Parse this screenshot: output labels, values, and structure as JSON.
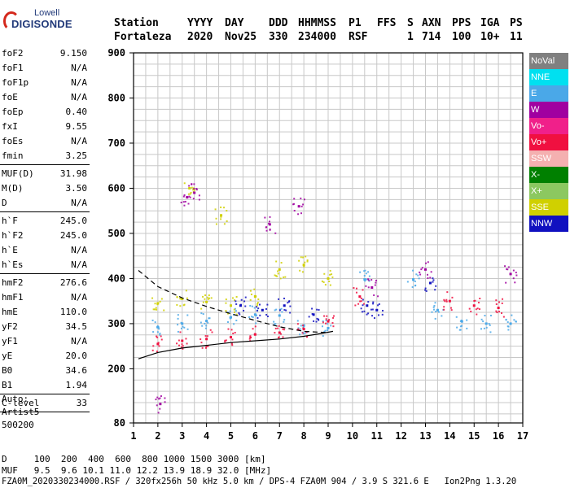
{
  "logo": {
    "line1": "Lowell",
    "line2": "DIGISONDE"
  },
  "header": {
    "labels": [
      "Station",
      "YYYY",
      "DAY",
      "DDD",
      "HHMMSS",
      "P1",
      "FFS",
      "S",
      "AXN",
      "PPS",
      "IGA",
      "PS"
    ],
    "values": [
      "Fortaleza",
      "2020",
      "Nov25",
      "330",
      "234000",
      "RSF",
      "1",
      "714",
      "100",
      "10+",
      "11"
    ]
  },
  "params": [
    [
      {
        "k": "foF2",
        "v": "9.150"
      },
      {
        "k": "foF1",
        "v": "N/A"
      },
      {
        "k": "foF1p",
        "v": "N/A"
      },
      {
        "k": "foE",
        "v": "N/A"
      },
      {
        "k": "foEp",
        "v": "0.40"
      },
      {
        "k": "fxI",
        "v": "9.55"
      },
      {
        "k": "foEs",
        "v": "N/A"
      },
      {
        "k": "fmin",
        "v": "3.25"
      }
    ],
    [
      {
        "k": "MUF(D)",
        "v": "31.98"
      },
      {
        "k": "M(D)",
        "v": "3.50"
      },
      {
        "k": "D",
        "v": "N/A"
      }
    ],
    [
      {
        "k": "h`F",
        "v": "245.0"
      },
      {
        "k": "h`F2",
        "v": "245.0"
      },
      {
        "k": "h`E",
        "v": "N/A"
      },
      {
        "k": "h`Es",
        "v": "N/A"
      }
    ],
    [
      {
        "k": "hmF2",
        "v": "276.6"
      },
      {
        "k": "hmF1",
        "v": "N/A"
      },
      {
        "k": "hmE",
        "v": "110.0"
      },
      {
        "k": "yF2",
        "v": "34.5"
      },
      {
        "k": "yF1",
        "v": "N/A"
      },
      {
        "k": "yE",
        "v": "20.0"
      },
      {
        "k": "B0",
        "v": "34.6"
      },
      {
        "k": "B1",
        "v": "1.94"
      }
    ],
    [
      {
        "k": "C-level",
        "v": "33"
      }
    ]
  ],
  "auto": [
    "Auto:",
    "Artist5",
    "500200"
  ],
  "legend": [
    {
      "label": "NoVal",
      "color": "#808080"
    },
    {
      "label": "NNE",
      "color": "#00e0f0"
    },
    {
      "label": "E",
      "color": "#4aa8e8"
    },
    {
      "label": "W",
      "color": "#a000a0"
    },
    {
      "label": "Vo-",
      "color": "#f0208a"
    },
    {
      "label": "Vo+",
      "color": "#f01040"
    },
    {
      "label": "SSW",
      "color": "#f4b0b0"
    },
    {
      "label": "X-",
      "color": "#008000"
    },
    {
      "label": "X+",
      "color": "#8cc860"
    },
    {
      "label": "SSE",
      "color": "#d0d000"
    },
    {
      "label": "NNW",
      "color": "#1010c0"
    }
  ],
  "footer": {
    "line1": "D     100  200  400  600  800 1000 1500 3000 [km]",
    "line2": "MUF   9.5  9.6 10.1 11.0 12.2 13.9 18.9 32.0 [MHz]",
    "line3": "FZA0M_2020330234000.RSF / 320fx256h 50 kHz 5.0 km / DPS-4 FZA0M 904 / 3.9 S 321.6 E   Ion2Png 1.3.20"
  },
  "chart_data": {
    "type": "scatter",
    "xlim": [
      1,
      17
    ],
    "ylim": [
      80,
      900
    ],
    "x_ticks": [
      "1",
      "2",
      "3",
      "4",
      "5",
      "6",
      "7",
      "8",
      "9",
      "10",
      "11",
      "12",
      "13",
      "14",
      "15",
      "16",
      "17"
    ],
    "y_ticks": [
      "80",
      "200",
      "300",
      "400",
      "500",
      "600",
      "700",
      "800",
      "900"
    ],
    "grid": true,
    "series": [
      {
        "name": "E",
        "color": "#4aa8e8",
        "points": [
          [
            2.0,
            292
          ],
          [
            3.0,
            300
          ],
          [
            4.0,
            306
          ],
          [
            5.0,
            314
          ],
          [
            6.0,
            320
          ],
          [
            7.0,
            318
          ],
          [
            8.0,
            296
          ],
          [
            9.0,
            290
          ],
          [
            10.5,
            398
          ],
          [
            12.5,
            398
          ],
          [
            13.5,
            330
          ],
          [
            14.5,
            305
          ],
          [
            15.5,
            300
          ],
          [
            16.5,
            300
          ]
        ]
      },
      {
        "name": "Vo+",
        "color": "#f01040",
        "points": [
          [
            2.0,
            255
          ],
          [
            3.0,
            262
          ],
          [
            4.0,
            266
          ],
          [
            5.0,
            270
          ],
          [
            6.0,
            276
          ],
          [
            7.0,
            280
          ],
          [
            8.0,
            288
          ],
          [
            9.0,
            305
          ],
          [
            10.3,
            360
          ],
          [
            14.0,
            350
          ],
          [
            15.0,
            340
          ],
          [
            16.0,
            335
          ]
        ]
      },
      {
        "name": "SSE",
        "color": "#d0d000",
        "points": [
          [
            2.0,
            345
          ],
          [
            3.0,
            355
          ],
          [
            4.0,
            348
          ],
          [
            5.0,
            340
          ],
          [
            6.0,
            360
          ],
          [
            7.0,
            420
          ],
          [
            8.0,
            430
          ],
          [
            9.0,
            400
          ],
          [
            3.3,
            600
          ],
          [
            4.6,
            540
          ]
        ]
      },
      {
        "name": "W",
        "color": "#a000a0",
        "points": [
          [
            3.2,
            580
          ],
          [
            3.5,
            590
          ],
          [
            6.6,
            520
          ],
          [
            7.8,
            560
          ],
          [
            2.1,
            122
          ],
          [
            10.8,
            380
          ],
          [
            13.0,
            420
          ],
          [
            16.5,
            410
          ]
        ]
      },
      {
        "name": "NNW",
        "color": "#1010c0",
        "points": [
          [
            5.4,
            340
          ],
          [
            6.3,
            330
          ],
          [
            7.2,
            340
          ],
          [
            8.4,
            320
          ],
          [
            10.6,
            340
          ],
          [
            11.0,
            330
          ],
          [
            13.2,
            390
          ]
        ]
      }
    ],
    "fitted_curve": {
      "x": [
        1.2,
        2,
        3,
        4,
        5,
        6,
        7,
        8,
        8.7,
        9.2
      ],
      "y": [
        222,
        236,
        246,
        252,
        258,
        262,
        266,
        272,
        278,
        283
      ]
    },
    "dashed_curve": {
      "x": [
        1.2,
        2,
        3,
        4,
        5,
        6,
        7,
        8,
        9
      ],
      "y": [
        418,
        382,
        357,
        338,
        322,
        307,
        293,
        283,
        280
      ]
    }
  }
}
